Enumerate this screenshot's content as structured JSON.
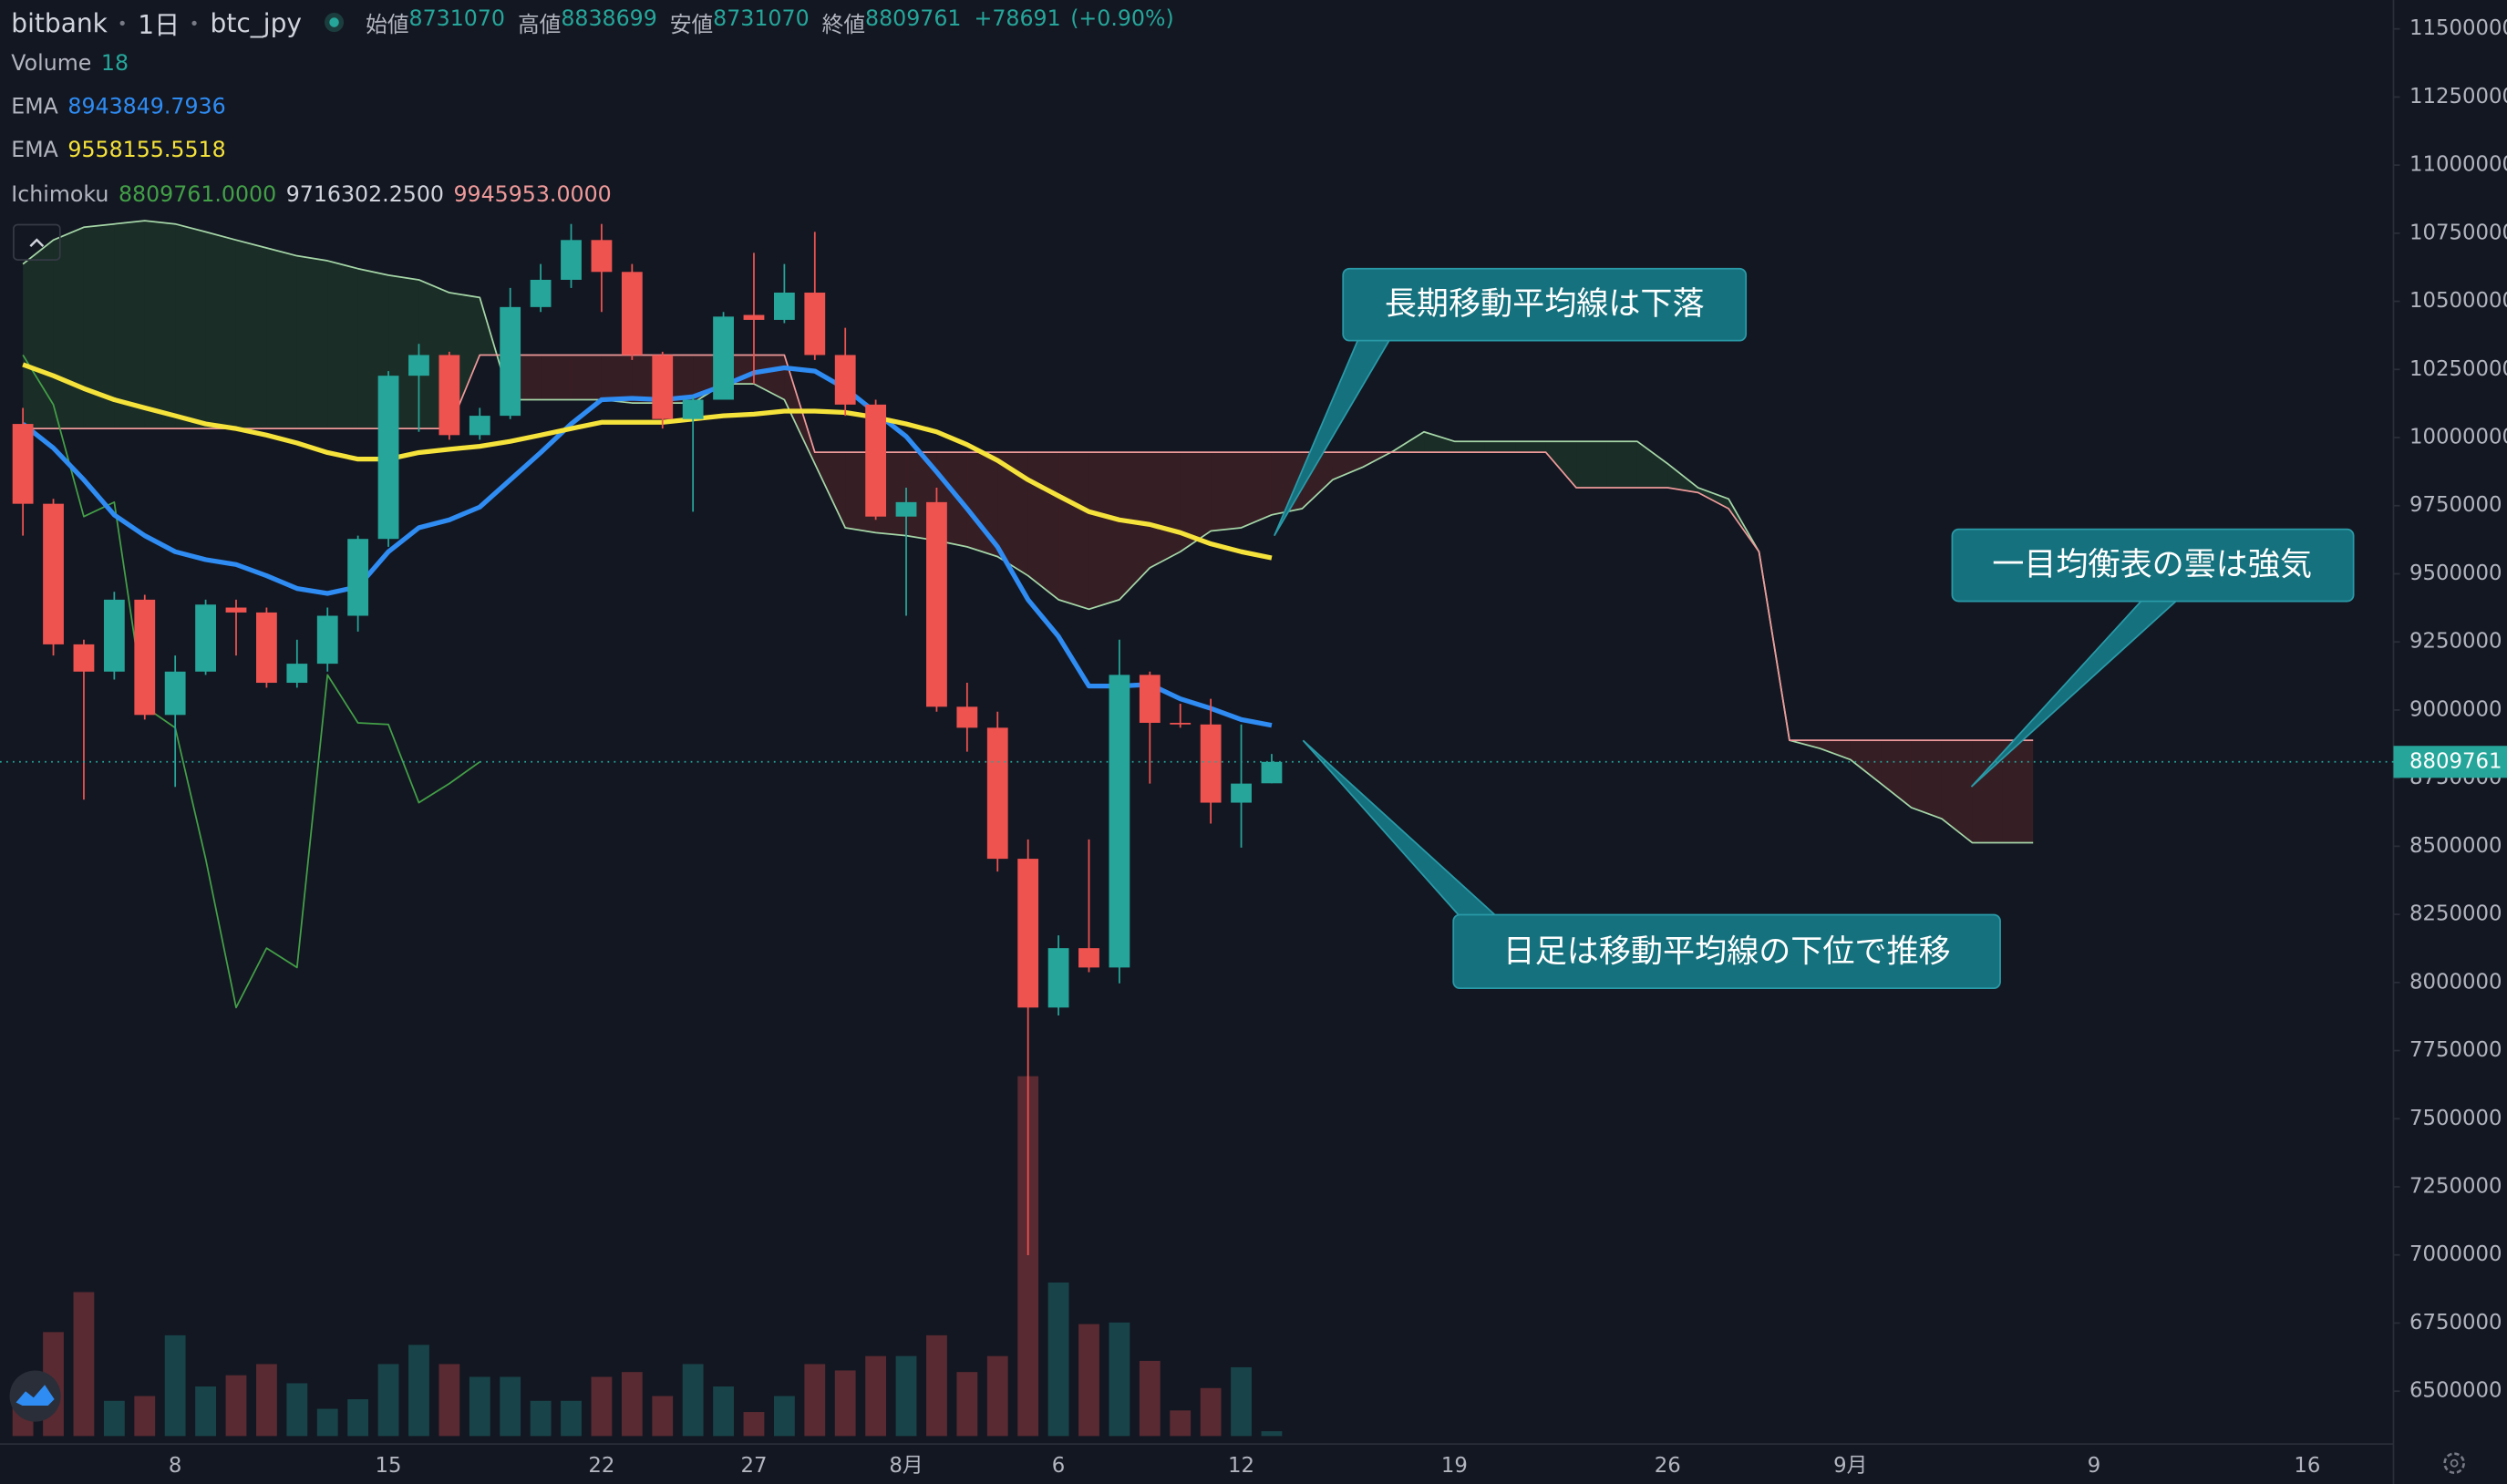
{
  "chart_data": {
    "type": "candlestick",
    "header": {
      "exchange": "bitbank",
      "interval": "1日",
      "symbol": "btc_jpy",
      "ohlc_labels": [
        "始値",
        "高値",
        "安値",
        "終値"
      ],
      "ohlc_values": [
        8731070,
        8838699,
        8731070,
        8809761
      ],
      "change": "+78691",
      "change_pct": "(+0.90%)"
    },
    "annotations": [
      "長期移動平均線は下落",
      "一目均衡表の雲は強気",
      "日足は移動平均線の下位で推移"
    ],
    "categories": [
      null,
      null,
      null,
      null,
      null,
      "8",
      null,
      null,
      null,
      null,
      null,
      null,
      "15",
      null,
      null,
      null,
      null,
      null,
      null,
      "22",
      null,
      null,
      null,
      null,
      "27",
      null,
      null,
      null,
      null,
      "8月",
      null,
      null,
      null,
      null,
      "6",
      null,
      null,
      null,
      null,
      null,
      "12",
      null,
      null,
      null,
      null,
      null,
      null,
      "19",
      null,
      null,
      null,
      null,
      null,
      null,
      "26",
      null,
      null,
      null,
      null,
      null,
      "9月",
      null,
      null,
      null,
      null,
      null,
      null,
      null,
      "9",
      null,
      null,
      null,
      null,
      null,
      null,
      "16",
      null,
      null
    ],
    "open": [
      10050000,
      9757000,
      9241000,
      9141000,
      9405000,
      8982000,
      9141000,
      9376000,
      9358000,
      9100000,
      9170000,
      9346000,
      9628000,
      10227000,
      10303000,
      10009000,
      10080000,
      10479000,
      10579000,
      10725000,
      10608000,
      10303000,
      10068000,
      10139000,
      10450000,
      10432000,
      10532000,
      10303000,
      10121000,
      9710000,
      9763000,
      9012000,
      8935000,
      8454000,
      7908000,
      8126000,
      8055000,
      9129000,
      8953000,
      8947000,
      8660000,
      8731070,
      null,
      null,
      null,
      null,
      null,
      null,
      null,
      null,
      null,
      null,
      null,
      null,
      null,
      null,
      null,
      null,
      null,
      null,
      null,
      null,
      null,
      null,
      null,
      null,
      null,
      null,
      null,
      null,
      null,
      null,
      null,
      null,
      null,
      null,
      null,
      null
    ],
    "high": [
      10109000,
      9775000,
      9258000,
      9434000,
      9423000,
      9200000,
      9405000,
      9405000,
      9376000,
      9258000,
      9376000,
      9640000,
      10244000,
      10344000,
      10315000,
      10109000,
      10549000,
      10637000,
      10784000,
      10784000,
      10637000,
      10315000,
      10150000,
      10461000,
      10678000,
      10637000,
      10755000,
      10403000,
      10139000,
      9816000,
      9816000,
      9100000,
      8994000,
      8525000,
      8173000,
      8525000,
      9258000,
      9141000,
      9023000,
      9041000,
      8947000,
      8838699,
      null,
      null,
      null,
      null,
      null,
      null,
      null,
      null,
      null,
      null,
      null,
      null,
      null,
      null,
      null,
      null,
      null,
      null,
      null,
      null,
      null,
      null,
      null,
      null,
      null,
      null,
      null,
      null,
      null,
      null,
      null,
      null,
      null,
      null,
      null,
      null
    ],
    "low": [
      9640000,
      9200000,
      8671000,
      9112000,
      8965000,
      8718000,
      9129000,
      9200000,
      9082000,
      9082000,
      9141000,
      9288000,
      9599000,
      10021000,
      9992000,
      9992000,
      10068000,
      10461000,
      10549000,
      10461000,
      10285000,
      10033000,
      9728000,
      10139000,
      10197000,
      10420000,
      10285000,
      10080000,
      9698000,
      9346000,
      8994000,
      8847000,
      8407000,
      6999000,
      7879000,
      8038000,
      7997000,
      8730000,
      8935000,
      8583000,
      8495000,
      8731070,
      null,
      null,
      null,
      null,
      null,
      null,
      null,
      null,
      null,
      null,
      null,
      null,
      null,
      null,
      null,
      null,
      null,
      null,
      null,
      null,
      null,
      null,
      null,
      null,
      null,
      null,
      null,
      null,
      null,
      null,
      null,
      null,
      null,
      null,
      null,
      null
    ],
    "close": [
      9757000,
      9241000,
      9141000,
      9405000,
      8982000,
      9141000,
      9387000,
      9358000,
      9100000,
      9170000,
      9346000,
      9628000,
      10227000,
      10303000,
      10009000,
      10080000,
      10479000,
      10579000,
      10725000,
      10608000,
      10303000,
      10068000,
      10139000,
      10444000,
      10432000,
      10532000,
      10303000,
      10121000,
      9710000,
      9763000,
      9012000,
      8935000,
      8454000,
      7908000,
      8126000,
      8055000,
      9129000,
      8953000,
      8947000,
      8660000,
      8730000,
      8809761,
      null,
      null,
      null,
      null,
      null,
      null,
      null,
      null,
      null,
      null,
      null,
      null,
      null,
      null,
      null,
      null,
      null,
      null,
      null,
      null,
      null,
      null,
      null,
      null,
      null,
      null,
      null,
      null,
      null,
      null,
      null,
      null,
      null,
      null,
      null,
      null
    ],
    "up_color": "#26a69a",
    "down_color": "#ef5350",
    "volume": {
      "name": "Volume",
      "up_color": "rgba(38,166,154,0.32)",
      "down_color": "rgba(239,83,80,0.32)",
      "values": [
        168,
        390,
        540,
        132,
        150,
        378,
        186,
        228,
        270,
        198,
        102,
        138,
        270,
        342,
        270,
        222,
        222,
        132,
        132,
        222,
        240,
        150,
        270,
        186,
        90,
        150,
        270,
        246,
        300,
        300,
        378,
        240,
        300,
        1350,
        576,
        420,
        426,
        282,
        96,
        180,
        258,
        18,
        null,
        null,
        null,
        null,
        null,
        null,
        null,
        null,
        null,
        null,
        null,
        null,
        null,
        null,
        null,
        null,
        null,
        null,
        null,
        null,
        null,
        null,
        null,
        null,
        null,
        null,
        null,
        null,
        null,
        null,
        null,
        null,
        null,
        null,
        null,
        null
      ]
    },
    "series": [
      {
        "name": "EMA",
        "color": "#2f8cf3",
        "values": [
          10050000,
          9962000,
          9845000,
          9716000,
          9640000,
          9581000,
          9552000,
          9534000,
          9493000,
          9446000,
          9428000,
          9452000,
          9581000,
          9669000,
          9698000,
          9745000,
          9845000,
          9945000,
          10050000,
          10139000,
          10144000,
          10139000,
          10150000,
          10191000,
          10238000,
          10256000,
          10244000,
          10180000,
          10092000,
          10004000,
          9874000,
          9739000,
          9599000,
          9405000,
          9270000,
          9088000,
          9088000,
          9094000,
          9041000,
          9006000,
          8965000,
          8943849.7936,
          null,
          null,
          null,
          null,
          null,
          null,
          null,
          null,
          null,
          null,
          null,
          null,
          null,
          null,
          null,
          null,
          null,
          null,
          null,
          null,
          null,
          null,
          null,
          null,
          null,
          null,
          null,
          null,
          null,
          null,
          null,
          null,
          null,
          null,
          null,
          null
        ]
      },
      {
        "name": "EMA",
        "color": "#f5e23b",
        "values": [
          10268000,
          10227000,
          10180000,
          10139000,
          10109000,
          10080000,
          10050000,
          10033000,
          10009000,
          9980000,
          9945000,
          9921000,
          9921000,
          9945000,
          9957000,
          9968000,
          9986000,
          10009000,
          10033000,
          10056000,
          10056000,
          10056000,
          10068000,
          10080000,
          10086000,
          10097000,
          10097000,
          10092000,
          10074000,
          10050000,
          10021000,
          9974000,
          9916000,
          9845000,
          9786000,
          9728000,
          9698000,
          9681000,
          9651000,
          9610000,
          9581000,
          9558155.5518,
          null,
          null,
          null,
          null,
          null,
          null,
          null,
          null,
          null,
          null,
          null,
          null,
          null,
          null,
          null,
          null,
          null,
          null,
          null,
          null,
          null,
          null,
          null,
          null,
          null,
          null,
          null,
          null,
          null,
          null,
          null,
          null,
          null,
          null,
          null,
          null
        ]
      }
    ],
    "ichimoku": {
      "name": "Ichimoku",
      "legend_values": [
        {
          "value": 8809761,
          "label": "8809761.0000"
        },
        {
          "value": 9716302.25,
          "label": "9716302.2500"
        },
        {
          "value": 9945953,
          "label": "9945953.0000"
        }
      ],
      "lagging_color": "#43a047",
      "span_a_color": "#a5d6a7",
      "span_b_color": "#ef9a9a",
      "cloud_up_color": "rgba(67,160,71,0.16)",
      "cloud_down_color": "rgba(244,67,54,0.16)",
      "lagging": [
        10303000,
        10121000,
        9710000,
        9763000,
        9012000,
        8935000,
        8454000,
        7908000,
        8126000,
        8055000,
        9129000,
        8953000,
        8947000,
        8660000,
        8730000,
        8809761,
        null,
        null,
        null,
        null,
        null,
        null,
        null,
        null,
        null,
        null,
        null,
        null,
        null,
        null,
        null,
        null,
        null,
        null,
        null,
        null,
        null,
        null,
        null,
        null,
        null,
        null,
        null,
        null,
        null,
        null,
        null,
        null,
        null,
        null,
        null,
        null,
        null,
        null,
        null,
        null,
        null,
        null,
        null,
        null,
        null,
        null,
        null,
        null,
        null,
        null,
        null,
        null,
        null,
        null,
        null,
        null,
        null,
        null,
        null,
        null,
        null,
        null
      ],
      "span_a": [
        10637000,
        10725000,
        10772000,
        10784000,
        10796000,
        10784000,
        10755000,
        10725000,
        10696000,
        10667000,
        10649000,
        10620000,
        10596000,
        10579000,
        10532000,
        10514000,
        10139000,
        10139000,
        10139000,
        10139000,
        10127000,
        10127000,
        10127000,
        10197000,
        10197000,
        10139000,
        9904000,
        9669000,
        9651000,
        9640000,
        9622000,
        9599000,
        9563000,
        9493000,
        9405000,
        9370000,
        9405000,
        9522000,
        9581000,
        9657000,
        9669000,
        9716302.25,
        9739000,
        9845000,
        9892000,
        9951000,
        10021000,
        9986000,
        9986000,
        9986000,
        9986000,
        9986000,
        9986000,
        9986000,
        9904000,
        9816000,
        9775000,
        9581000,
        8889000,
        8859000,
        8818000,
        8730000,
        8642000,
        8601000,
        8513000,
        8513000,
        8513000,
        null,
        null,
        null,
        null,
        null,
        null,
        null,
        null,
        null,
        null,
        null
      ],
      "span_b": [
        10033000,
        10033000,
        10033000,
        10033000,
        10033000,
        10033000,
        10033000,
        10033000,
        10033000,
        10033000,
        10033000,
        10033000,
        10033000,
        10033000,
        10033000,
        10303000,
        10303000,
        10303000,
        10303000,
        10303000,
        10303000,
        10303000,
        10303000,
        10303000,
        10303000,
        10303000,
        9945953,
        9945953,
        9945953,
        9945953,
        9945953,
        9945953,
        9945953,
        9945953,
        9945953,
        9945953,
        9945953,
        9945953,
        9945953,
        9945953,
        9945953,
        9945953,
        9945953,
        9945953,
        9945953,
        9945953,
        9945953,
        9945953,
        9945953,
        9945953,
        9945953,
        9816000,
        9816000,
        9816000,
        9816000,
        9798000,
        9739000,
        9581000,
        8889000,
        8889000,
        8889000,
        8889000,
        8889000,
        8889000,
        8889000,
        8889000,
        8889000,
        null,
        null,
        null,
        null,
        null,
        null,
        null,
        null,
        null,
        null,
        null
      ]
    },
    "ylim": [
      6306000,
      11606000
    ],
    "yticks": [
      6500000,
      6750000,
      7000000,
      7250000,
      7500000,
      7750000,
      8000000,
      8250000,
      8500000,
      8750000,
      9000000,
      9250000,
      9500000,
      9750000,
      10000000,
      10250000,
      10500000,
      10750000,
      11000000,
      11250000,
      11500000
    ],
    "grid": false
  }
}
